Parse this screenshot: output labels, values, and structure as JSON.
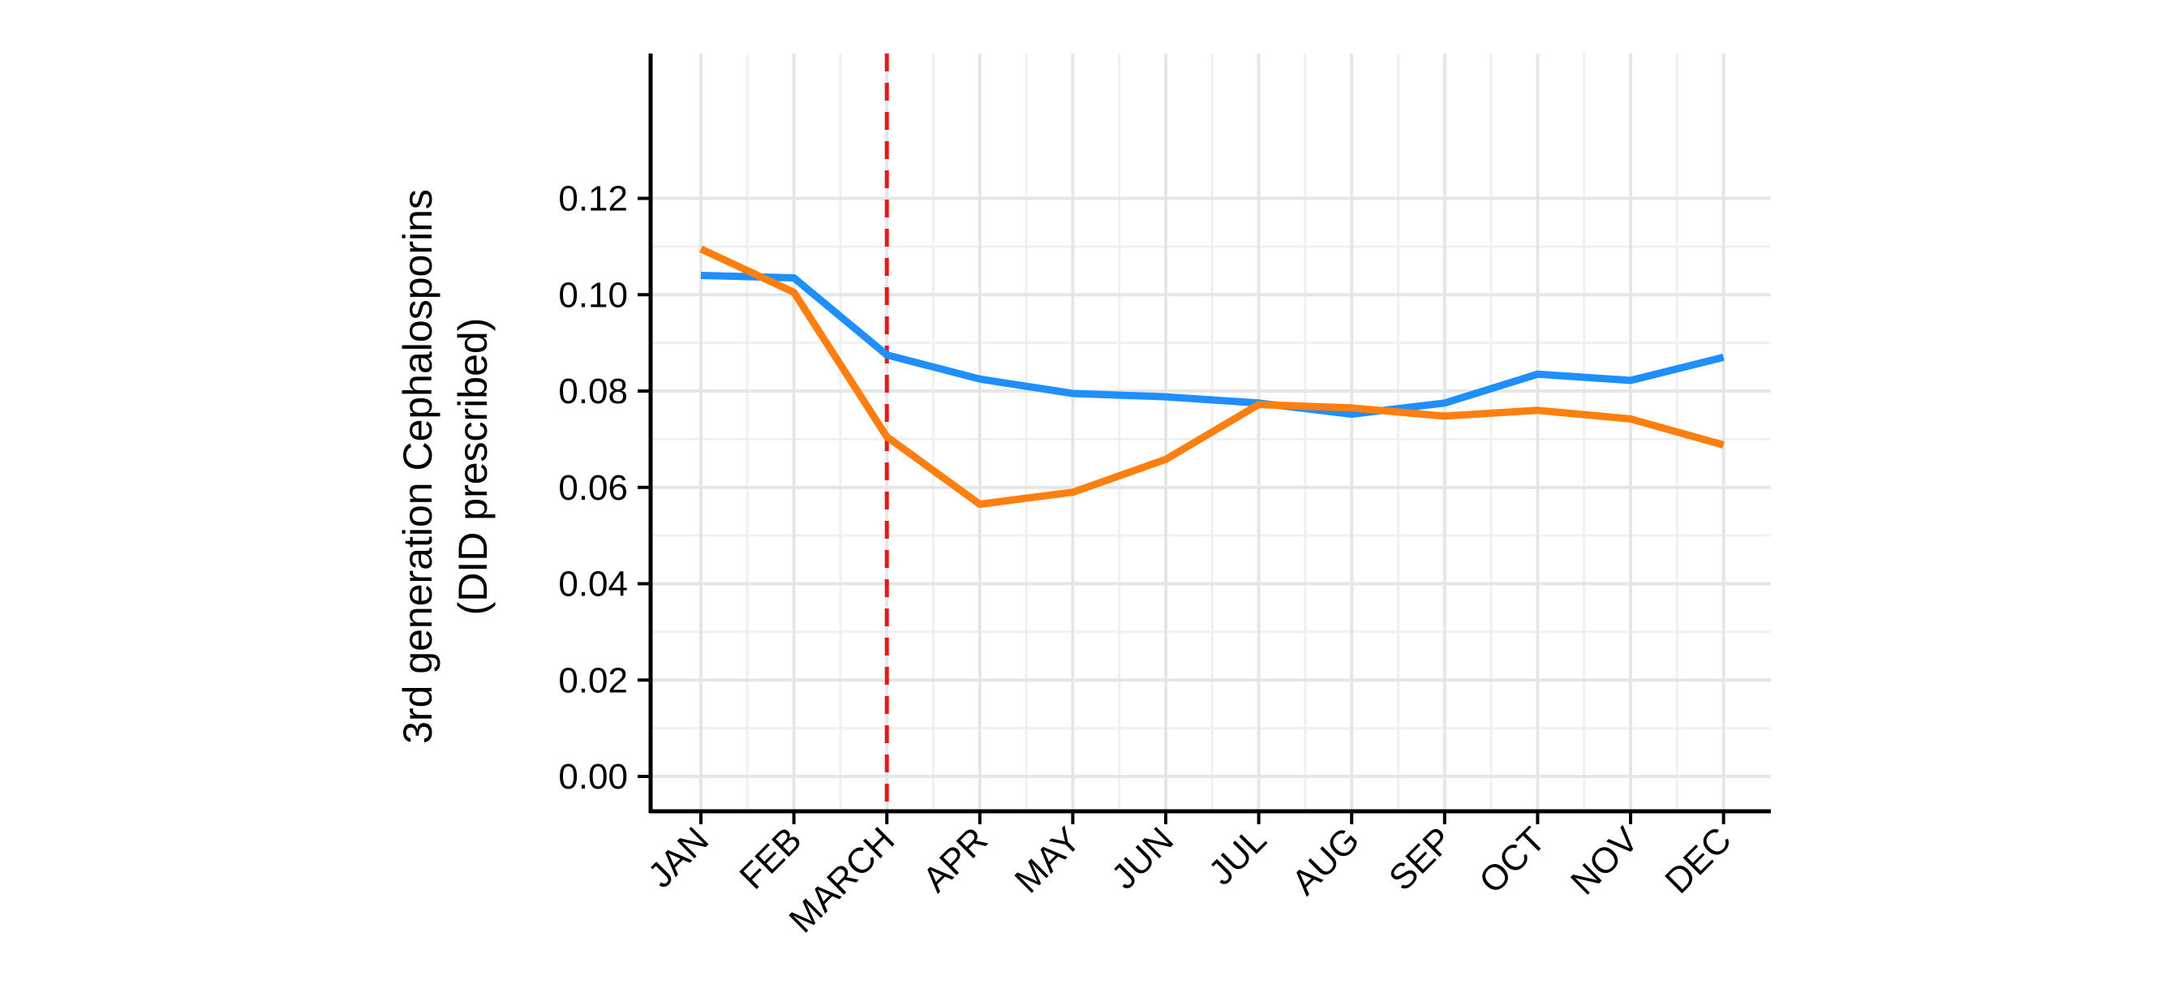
{
  "chart_data": {
    "type": "line",
    "title": "",
    "xlabel": "",
    "ylabel_line1": "3rd generation Cephalosporins",
    "ylabel_line2": "(DID prescribed)",
    "categories": [
      "JAN",
      "FEB",
      "MARCH",
      "APR",
      "MAY",
      "JUN",
      "JUL",
      "AUG",
      "SEP",
      "OCT",
      "NOV",
      "DEC"
    ],
    "ylim": [
      0,
      0.12
    ],
    "yticks": [
      "0.00",
      "0.02",
      "0.04",
      "0.06",
      "0.08",
      "0.10",
      "0.12"
    ],
    "grid": true,
    "legend": "none",
    "vertical_marker": {
      "category": "MARCH",
      "color": "#e8171b",
      "style": "dashed"
    },
    "series": [
      {
        "color": "#1f8fff",
        "values": [
          0.104,
          0.1035,
          0.0875,
          0.0825,
          0.0795,
          0.0788,
          0.0775,
          0.0752,
          0.0775,
          0.0835,
          0.0822,
          0.087
        ]
      },
      {
        "color": "#ff7f0e",
        "values": [
          0.1095,
          0.1005,
          0.0705,
          0.0565,
          0.059,
          0.0658,
          0.0772,
          0.0765,
          0.0748,
          0.076,
          0.0742,
          0.0688
        ]
      }
    ]
  }
}
